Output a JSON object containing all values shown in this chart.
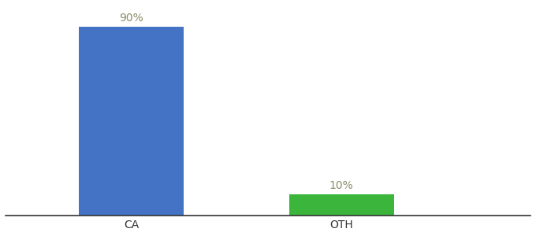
{
  "categories": [
    "CA",
    "OTH"
  ],
  "values": [
    90,
    10
  ],
  "bar_colors": [
    "#4472c4",
    "#3cb53c"
  ],
  "value_labels": [
    "90%",
    "10%"
  ],
  "background_color": "#ffffff",
  "ylim": [
    0,
    100
  ],
  "bar_width": 0.5,
  "label_fontsize": 10,
  "tick_fontsize": 10,
  "label_color": "#8b8b6b",
  "x_positions": [
    1,
    2
  ],
  "xlim": [
    0.4,
    2.9
  ]
}
